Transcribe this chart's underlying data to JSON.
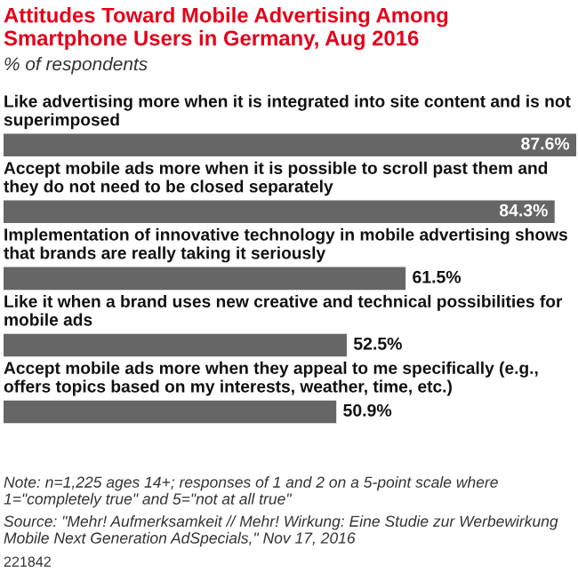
{
  "chart_data": {
    "type": "bar",
    "orientation": "horizontal",
    "title": "Attitudes Toward Mobile Advertising Among Smartphone Users in Germany, Aug 2016",
    "subtitle": "% of respondents",
    "categories": [
      "Like advertising more when it is integrated into site content and is not superimposed",
      "Accept mobile ads more when it is possible to scroll past them and they do not need to be closed separately",
      "Implementation of innovative technology in mobile advertising shows that brands are really taking it seriously",
      "Like it when a brand uses new creative and technical possibilities for mobile ads",
      "Accept mobile ads more when they appeal to me specifically (e.g., offers topics based on my interests, weather, time, etc.)"
    ],
    "values": [
      87.6,
      84.3,
      61.5,
      52.5,
      50.9
    ],
    "value_labels": [
      "87.6%",
      "84.3%",
      "61.5%",
      "52.5%",
      "50.9%"
    ],
    "color": "#666666",
    "annotations": [
      "Note: n=1,225 ages 14+; responses of 1 and 2 on a 5-point scale where 1=\"completely true\" and 5=\"not at all true\"",
      "Source: \"Mehr! Aufmerksamkeit // Mehr! Wirkung: Eine Studie zur Werbewirkung Mobile Next Generation AdSpecials,\" Nov 17, 2016",
      "221842"
    ]
  }
}
